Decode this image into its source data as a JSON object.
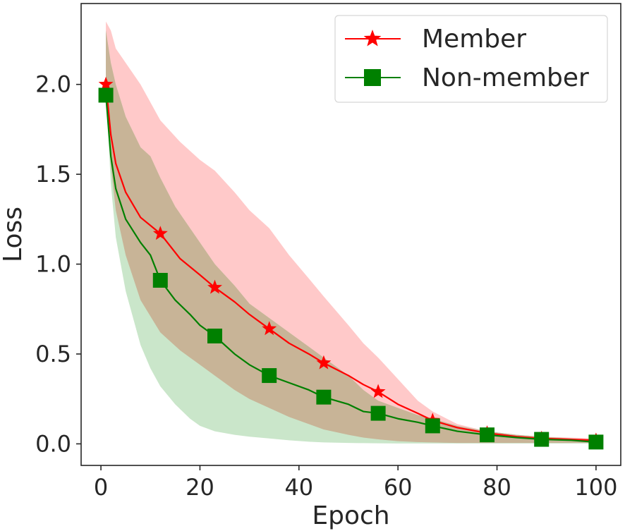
{
  "chart_data": {
    "type": "line",
    "xlabel": "Epoch",
    "ylabel": "Loss",
    "xlim": [
      -4,
      105
    ],
    "ylim": [
      -0.12,
      2.45
    ],
    "x_ticks": [
      0,
      20,
      40,
      60,
      80,
      100
    ],
    "x_tick_labels": [
      "0",
      "20",
      "40",
      "60",
      "80",
      "100"
    ],
    "y_ticks": [
      0.0,
      0.5,
      1.0,
      1.5,
      2.0
    ],
    "y_tick_labels": [
      "0.0",
      "0.5",
      "1.0",
      "1.5",
      "2.0"
    ],
    "grid": false,
    "legend_position": "top-right",
    "colors": {
      "member": "#ff0000",
      "member_band": "#ffc6c6",
      "non_member": "#008000",
      "non_member_band": "#b8ddb8",
      "overlap_band": "#c8b497",
      "axis": "#262626"
    },
    "series": [
      {
        "name": "Member",
        "marker": "star",
        "marker_x": [
          1,
          12,
          23,
          34,
          45,
          56,
          67,
          78,
          89,
          100
        ],
        "x": [
          1,
          2,
          3,
          5,
          8,
          12,
          16,
          20,
          23,
          27,
          30,
          34,
          38,
          42,
          45,
          50,
          53,
          56,
          60,
          64,
          67,
          72,
          78,
          84,
          89,
          95,
          100
        ],
        "y": [
          2.0,
          1.72,
          1.56,
          1.4,
          1.26,
          1.17,
          1.03,
          0.94,
          0.87,
          0.79,
          0.72,
          0.64,
          0.56,
          0.5,
          0.45,
          0.38,
          0.33,
          0.29,
          0.22,
          0.17,
          0.13,
          0.09,
          0.06,
          0.04,
          0.03,
          0.025,
          0.02
        ],
        "lower": [
          2.0,
          1.55,
          1.3,
          1.05,
          0.8,
          0.62,
          0.52,
          0.44,
          0.38,
          0.3,
          0.25,
          0.2,
          0.15,
          0.11,
          0.08,
          0.05,
          0.035,
          0.025,
          0.015,
          0.01,
          0.008,
          0.005,
          0.005,
          0.005,
          0.005,
          0.005,
          0.005
        ],
        "upper": [
          2.35,
          2.3,
          2.2,
          2.12,
          2.0,
          1.8,
          1.68,
          1.58,
          1.52,
          1.4,
          1.3,
          1.2,
          1.05,
          0.92,
          0.82,
          0.66,
          0.56,
          0.48,
          0.36,
          0.24,
          0.18,
          0.11,
          0.07,
          0.05,
          0.04,
          0.035,
          0.03
        ]
      },
      {
        "name": "Non-member",
        "marker": "square",
        "marker_x": [
          1,
          12,
          23,
          34,
          45,
          56,
          67,
          78,
          89,
          100
        ],
        "x": [
          1,
          2,
          3,
          5,
          8,
          10,
          12,
          15,
          18,
          20,
          23,
          27,
          30,
          34,
          38,
          42,
          45,
          50,
          53,
          56,
          60,
          64,
          67,
          72,
          78,
          84,
          89,
          95,
          100
        ],
        "y": [
          1.94,
          1.6,
          1.42,
          1.25,
          1.12,
          1.05,
          0.91,
          0.8,
          0.72,
          0.66,
          0.6,
          0.5,
          0.44,
          0.38,
          0.34,
          0.3,
          0.26,
          0.22,
          0.18,
          0.17,
          0.14,
          0.12,
          0.1,
          0.07,
          0.05,
          0.035,
          0.025,
          0.02,
          0.01
        ],
        "lower": [
          1.94,
          1.45,
          1.15,
          0.85,
          0.55,
          0.42,
          0.32,
          0.22,
          0.14,
          0.1,
          0.07,
          0.05,
          0.04,
          0.03,
          0.02,
          0.012,
          0.008,
          0.005,
          0.004,
          0.003,
          0.002,
          0.002,
          0.002,
          0.002,
          0.002,
          0.002,
          0.002,
          0.002,
          0.002
        ],
        "upper": [
          2.3,
          2.12,
          2.0,
          1.82,
          1.65,
          1.6,
          1.48,
          1.32,
          1.2,
          1.12,
          1.0,
          0.88,
          0.78,
          0.7,
          0.62,
          0.54,
          0.48,
          0.38,
          0.3,
          0.24,
          0.2,
          0.16,
          0.14,
          0.1,
          0.07,
          0.05,
          0.04,
          0.03,
          0.02
        ]
      }
    ]
  }
}
